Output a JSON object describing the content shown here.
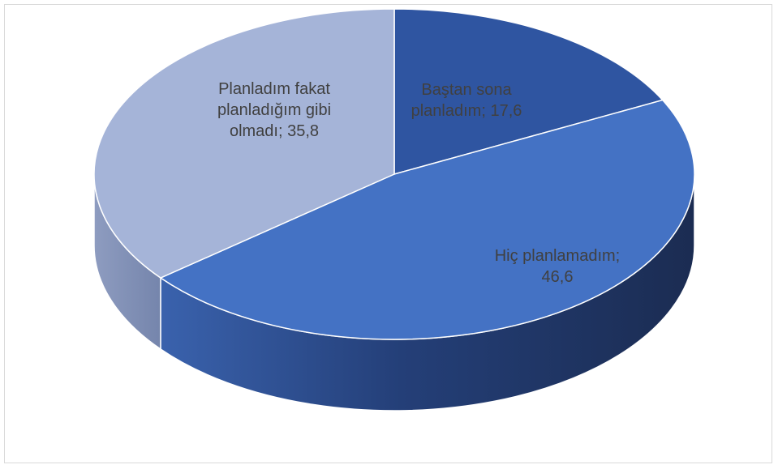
{
  "chart_data": {
    "type": "pie",
    "three_d": true,
    "title": "",
    "categories": [
      "Baştan sona planladım",
      "Hiç planlamadım",
      "Planladım fakat planladığım gibi olmadı"
    ],
    "values": [
      17.6,
      46.6,
      35.8
    ],
    "slices": [
      {
        "name": "Baştan sona planladım",
        "value": 17.6,
        "label_lines": [
          "Baştan sona",
          "planladım; 17,6"
        ],
        "color": "#2F55A1"
      },
      {
        "name": "Hiç planlamadım",
        "value": 46.6,
        "label_lines": [
          "Hiç planlamadım;",
          "46,6"
        ],
        "color": "#4472C4"
      },
      {
        "name": "Planladım fakat planladığım gibi olmadı",
        "value": 35.8,
        "label_lines": [
          "Planladım fakat",
          "planladığım gibi",
          "olmadı; 35,8"
        ],
        "color": "#A5B4D8"
      }
    ],
    "legend": "none",
    "grid": false
  }
}
